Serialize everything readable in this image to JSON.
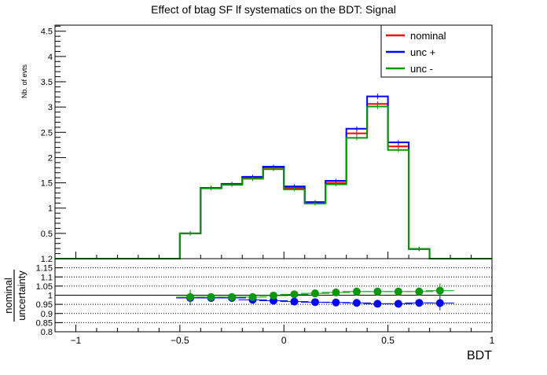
{
  "chart_data": {
    "type": "line",
    "title": "Effect of btag SF lf systematics on the BDT: Signal",
    "main": {
      "ylabel": "Nb. of evts",
      "xlim": [
        -1.1,
        1.0
      ],
      "ylim": [
        0,
        4.62
      ],
      "y_ticks": [
        "0.5",
        "1",
        "1.5",
        "2",
        "2.5",
        "3",
        "3.5",
        "4",
        "4.5"
      ],
      "bin_edges": [
        -1.1,
        -1.0,
        -0.9,
        -0.8,
        -0.7,
        -0.6,
        -0.5,
        -0.4,
        -0.3,
        -0.2,
        -0.1,
        0.0,
        0.1,
        0.2,
        0.3,
        0.4,
        0.5,
        0.6,
        0.7,
        0.8,
        0.9,
        1.0
      ],
      "legend_position": "top-right",
      "series": [
        {
          "name": "nominal",
          "color": "#ff0000",
          "values": [
            0,
            0,
            0,
            0,
            0,
            0,
            0.5,
            1.4,
            1.47,
            1.6,
            1.8,
            1.4,
            1.1,
            1.5,
            2.48,
            3.06,
            2.22,
            0.19,
            0,
            0,
            0
          ]
        },
        {
          "name": "unc +",
          "color": "#0000ff",
          "values": [
            0,
            0,
            0,
            0,
            0,
            0,
            0.5,
            1.4,
            1.48,
            1.62,
            1.82,
            1.43,
            1.12,
            1.54,
            2.57,
            3.21,
            2.3,
            0.19,
            0,
            0,
            0
          ]
        },
        {
          "name": "unc -",
          "color": "#009900",
          "values": [
            0,
            0,
            0,
            0,
            0,
            0,
            0.5,
            1.39,
            1.46,
            1.58,
            1.77,
            1.37,
            1.09,
            1.47,
            2.39,
            3.01,
            2.15,
            0.19,
            0,
            0,
            0
          ]
        }
      ]
    },
    "ratio": {
      "ylabel_numerator": "nominal",
      "ylabel_denominator": "uncertainty",
      "xlabel": "BDT",
      "ylim": [
        0.8,
        1.2
      ],
      "y_ticks": [
        "0.8",
        "0.85",
        "0.9",
        "0.95",
        "1",
        "1.05",
        "1.1",
        "1.15",
        "1.2"
      ],
      "x_ticks": [
        "−1",
        "−0.5",
        "0",
        "0.5",
        "1"
      ],
      "series": [
        {
          "name": "unc +",
          "color": "#0000ff",
          "x": [
            -0.45,
            -0.35,
            -0.25,
            -0.15,
            -0.05,
            0.05,
            0.15,
            0.25,
            0.35,
            0.45,
            0.55,
            0.65,
            0.75
          ],
          "y": [
            0.985,
            0.985,
            0.985,
            0.975,
            0.97,
            0.965,
            0.962,
            0.96,
            0.958,
            0.953,
            0.953,
            0.958,
            0.957
          ],
          "err": [
            0.04,
            0.02,
            0.02,
            0.02,
            0.02,
            0.02,
            0.02,
            0.02,
            0.02,
            0.02,
            0.015,
            0.015,
            0.04
          ]
        },
        {
          "name": "unc -",
          "color": "#009900",
          "x": [
            -0.45,
            -0.35,
            -0.25,
            -0.15,
            -0.05,
            0.05,
            0.15,
            0.25,
            0.35,
            0.45,
            0.55,
            0.65,
            0.75
          ],
          "y": [
            0.99,
            0.99,
            0.99,
            0.99,
            0.998,
            1.005,
            1.01,
            1.015,
            1.02,
            1.02,
            1.02,
            1.02,
            1.025
          ],
          "err": [
            0.04,
            0.02,
            0.02,
            0.02,
            0.02,
            0.02,
            0.02,
            0.02,
            0.02,
            0.02,
            0.015,
            0.015,
            0.04
          ]
        }
      ]
    }
  }
}
